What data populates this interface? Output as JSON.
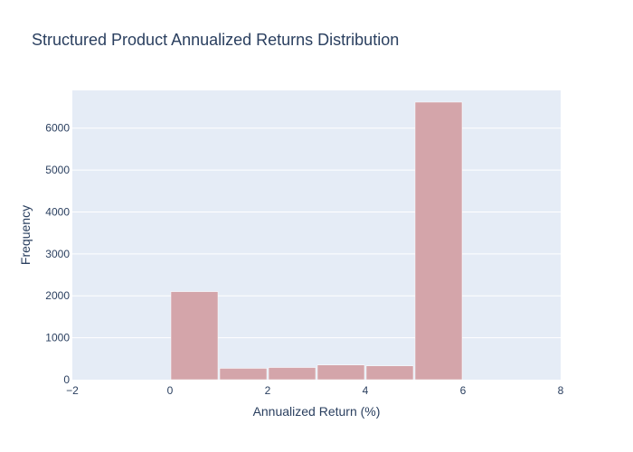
{
  "colors": {
    "plot_bg": "#e5ecf6",
    "gridline": "#ffffff",
    "bar_fill": "#d4a5aa",
    "bar_stroke": "#ffffff",
    "text": "#2a3f5f"
  },
  "chart_data": {
    "type": "bar",
    "title": "Structured Product Annualized Returns Distribution",
    "xlabel": "Annualized Return (%)",
    "ylabel": "Frequency",
    "xlim": [
      -2,
      8
    ],
    "ylim": [
      0,
      6900
    ],
    "grid": true,
    "x_ticks": [
      -2,
      0,
      2,
      4,
      6,
      8
    ],
    "x_tick_labels": [
      "−2",
      "0",
      "2",
      "4",
      "6",
      "8"
    ],
    "y_ticks": [
      0,
      1000,
      2000,
      3000,
      4000,
      5000,
      6000
    ],
    "y_tick_labels": [
      "0",
      "1000",
      "2000",
      "3000",
      "4000",
      "5000",
      "6000"
    ],
    "bins": [
      {
        "start": 0,
        "end": 1,
        "value": 2100
      },
      {
        "start": 1,
        "end": 2,
        "value": 270
      },
      {
        "start": 2,
        "end": 3,
        "value": 290
      },
      {
        "start": 3,
        "end": 4,
        "value": 350
      },
      {
        "start": 4,
        "end": 5,
        "value": 330
      },
      {
        "start": 5,
        "end": 6,
        "value": 6620
      }
    ]
  }
}
